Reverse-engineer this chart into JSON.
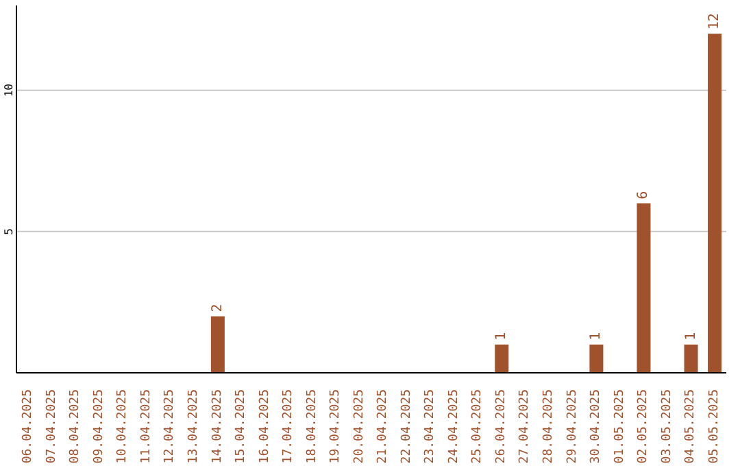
{
  "chart_data": {
    "type": "bar",
    "categories": [
      "06.04.2025",
      "07.04.2025",
      "08.04.2025",
      "09.04.2025",
      "10.04.2025",
      "11.04.2025",
      "12.04.2025",
      "13.04.2025",
      "14.04.2025",
      "15.04.2025",
      "16.04.2025",
      "17.04.2025",
      "18.04.2025",
      "19.04.2025",
      "20.04.2025",
      "21.04.2025",
      "22.04.2025",
      "23.04.2025",
      "24.04.2025",
      "25.04.2025",
      "26.04.2025",
      "27.04.2025",
      "28.04.2025",
      "29.04.2025",
      "30.04.2025",
      "01.05.2025",
      "02.05.2025",
      "03.05.2025",
      "04.05.2025",
      "05.05.2025"
    ],
    "values": [
      0,
      0,
      0,
      0,
      0,
      0,
      0,
      0,
      2,
      0,
      0,
      0,
      0,
      0,
      0,
      0,
      0,
      0,
      0,
      0,
      1,
      0,
      0,
      0,
      1,
      0,
      6,
      0,
      1,
      12
    ],
    "value_labels": [
      null,
      null,
      null,
      null,
      null,
      null,
      null,
      null,
      "2",
      null,
      null,
      null,
      null,
      null,
      null,
      null,
      null,
      null,
      null,
      null,
      "1",
      null,
      null,
      null,
      "1",
      null,
      "6",
      null,
      "1",
      "12"
    ],
    "color": "#a0522d",
    "ylim": [
      0,
      13
    ],
    "yticks": [
      5,
      10
    ],
    "grid": "y"
  }
}
